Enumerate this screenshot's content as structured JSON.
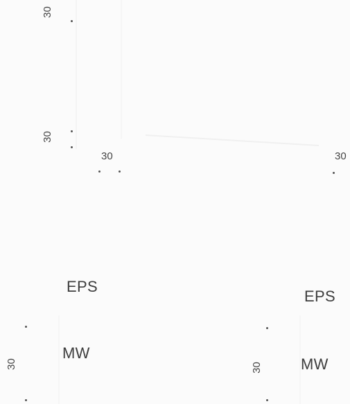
{
  "dimensions": {
    "top_left_vertical_1": "30",
    "top_left_vertical_2": "30",
    "top_horizontal_1": "30",
    "top_horizontal_2": "30",
    "bottom_left_vertical": "30",
    "bottom_right_vertical": "30"
  },
  "layers": {
    "left_eps": "EPS",
    "left_mw": "MW",
    "right_eps": "EPS",
    "right_mw": "MW"
  }
}
